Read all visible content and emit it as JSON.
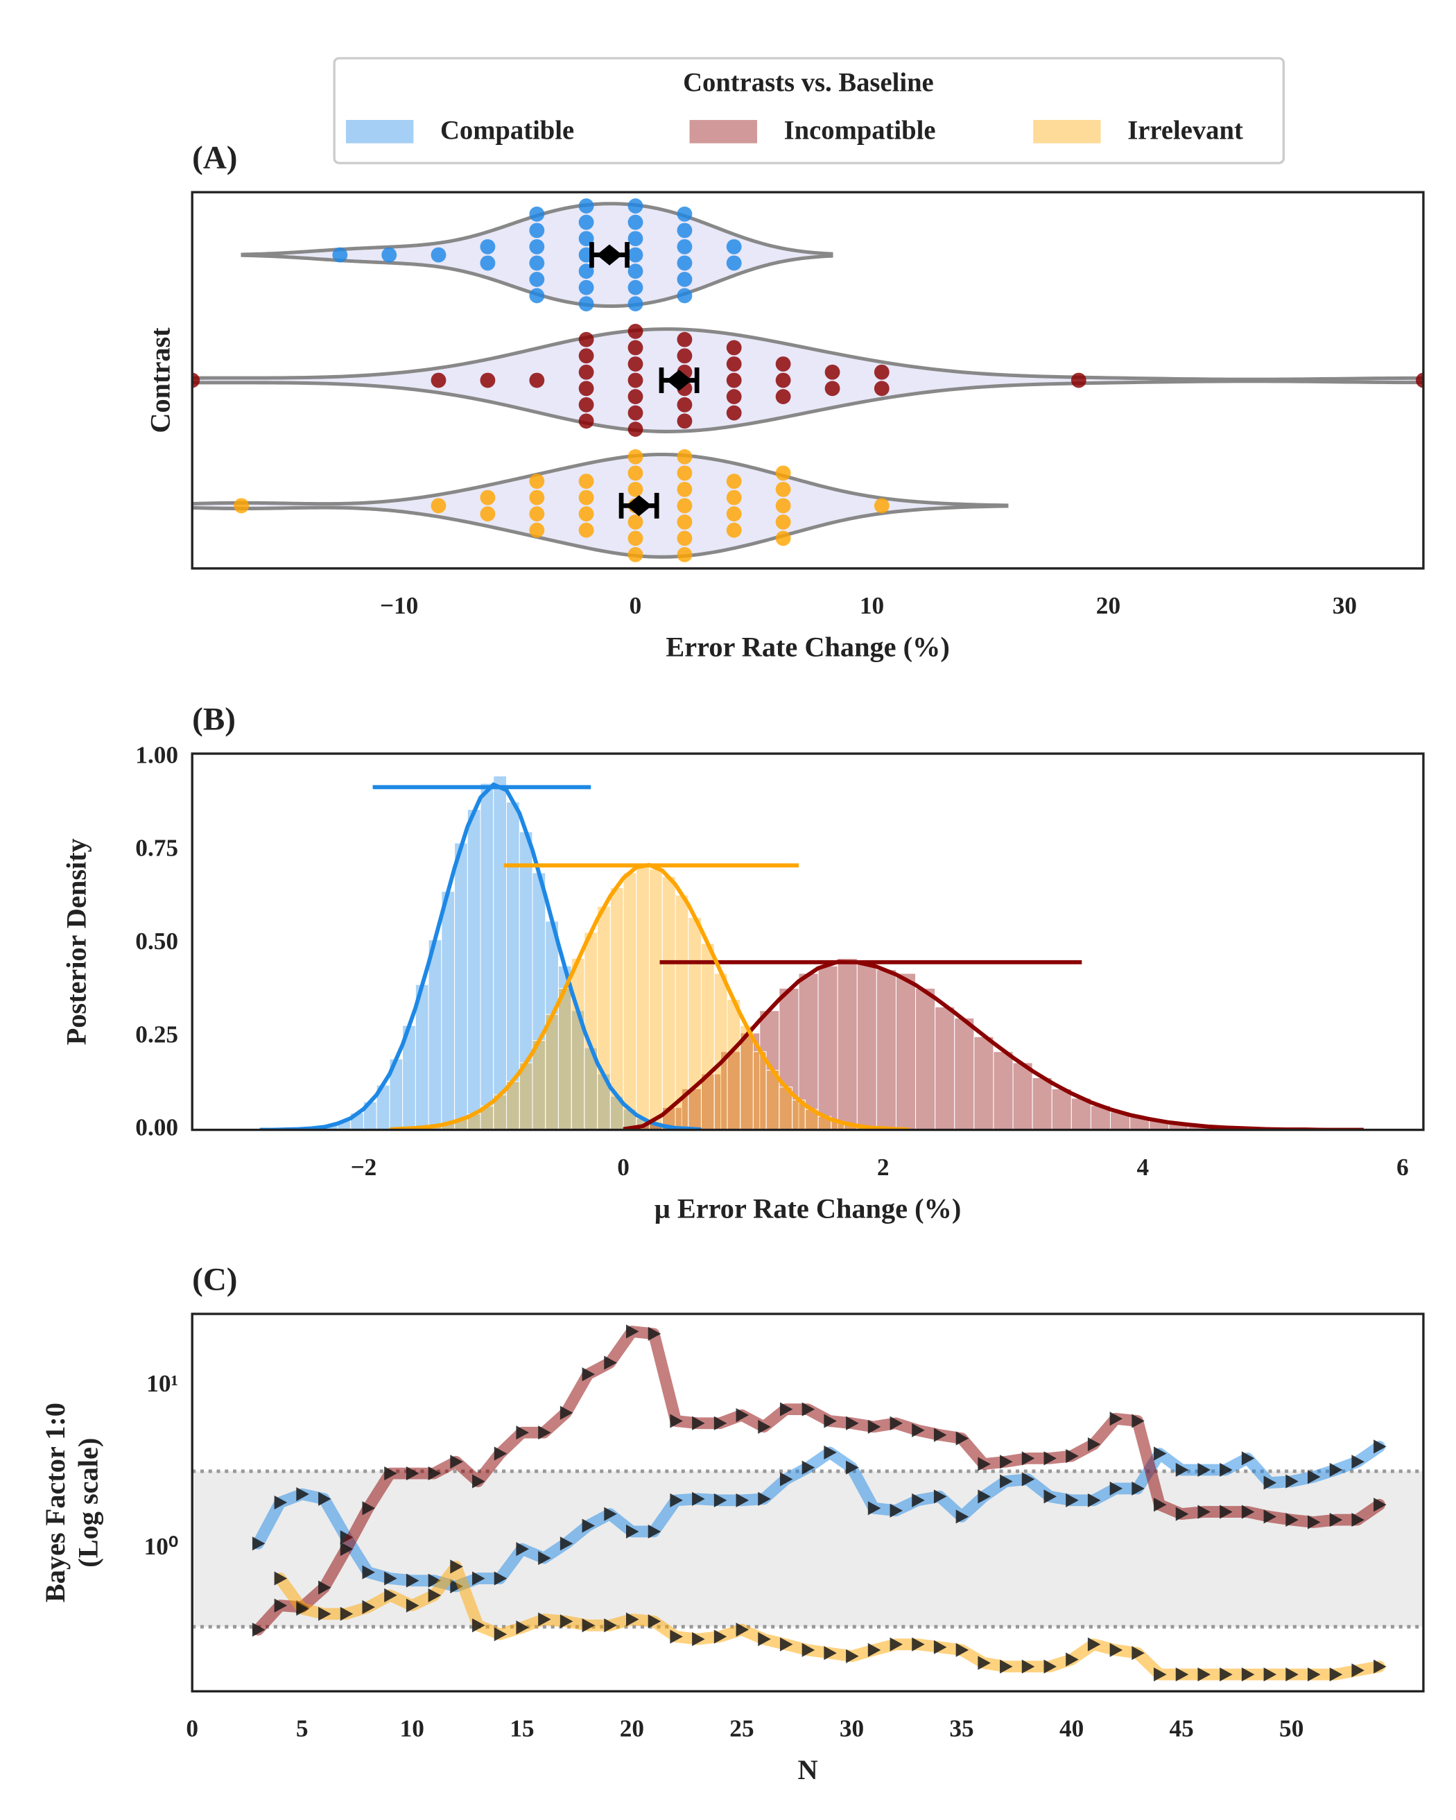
{
  "chart_data": [
    {
      "type": "violin",
      "panel_label": "(A)",
      "legend_title": "Contrasts vs. Baseline",
      "xlabel": "Error Rate Change (%)",
      "ylabel": "Contrast",
      "xlim": [
        -18.75,
        33.33
      ],
      "xticks": [
        {
          "value": -10,
          "label": "−10"
        },
        0,
        10,
        20,
        30
      ],
      "series": [
        {
          "name": "Compatible",
          "color": "#1e88e5",
          "mean": -1.1,
          "sem": 0.75,
          "values": [
            -12.5,
            -10.42,
            -8.33,
            -6.25,
            -6.25,
            -4.17,
            -4.17,
            -4.17,
            -4.17,
            -4.17,
            -4.17,
            -2.08,
            -2.08,
            -2.08,
            -2.08,
            -2.08,
            -2.08,
            -2.08,
            0,
            0,
            0,
            0,
            0,
            0,
            0,
            2.08,
            2.08,
            2.08,
            2.08,
            2.08,
            2.08,
            4.17,
            4.17
          ]
        },
        {
          "name": "Incompatible",
          "color": "#8b0000",
          "mean": 1.85,
          "sem": 0.75,
          "values": [
            -18.75,
            -8.33,
            -6.25,
            -4.17,
            -2.08,
            -2.08,
            -2.08,
            -2.08,
            -2.08,
            -2.08,
            0,
            0,
            0,
            0,
            0,
            0,
            0,
            2.08,
            2.08,
            2.08,
            2.08,
            2.08,
            2.08,
            4.17,
            4.17,
            4.17,
            4.17,
            4.17,
            6.25,
            6.25,
            6.25,
            8.33,
            8.33,
            10.42,
            10.42,
            18.75,
            33.33
          ]
        },
        {
          "name": "Irrelevant",
          "color": "#ffa500",
          "mean": 0.15,
          "sem": 0.75,
          "values": [
            -16.67,
            -8.33,
            -6.25,
            -6.25,
            -4.17,
            -4.17,
            -4.17,
            -4.17,
            -2.08,
            -2.08,
            -2.08,
            -2.08,
            0,
            0,
            0,
            0,
            0,
            0,
            0,
            2.08,
            2.08,
            2.08,
            2.08,
            2.08,
            2.08,
            2.08,
            4.17,
            4.17,
            4.17,
            4.17,
            6.25,
            6.25,
            6.25,
            6.25,
            6.25,
            10.42
          ]
        }
      ]
    },
    {
      "type": "hist",
      "panel_label": "(B)",
      "xlabel": "μ Error Rate Change (%)",
      "ylabel": "Posterior Density",
      "xlim": [
        -3.32,
        6.16
      ],
      "ylim": [
        0,
        1.01
      ],
      "xticks": [
        {
          "value": -2,
          "label": "−2"
        },
        0,
        2,
        4,
        6
      ],
      "yticks": [
        {
          "value": 0,
          "label": "0.00"
        },
        {
          "value": 0.25,
          "label": "0.25"
        },
        {
          "value": 0.5,
          "label": "0.50"
        },
        {
          "value": 0.75,
          "label": "0.75"
        },
        {
          "value": 1,
          "label": "1.00"
        }
      ],
      "series": [
        {
          "color": "#1e88e5",
          "hdi": [
            -1.93,
            -0.25
          ],
          "hdi_level": 0.92,
          "bins": [
            -2.8,
            -2.7,
            -2.6,
            -2.5,
            -2.4,
            -2.3,
            -2.2,
            -2.1,
            -2.0,
            -1.9,
            -1.8,
            -1.7,
            -1.6,
            -1.5,
            -1.4,
            -1.3,
            -1.2,
            -1.1,
            -1.0,
            -0.9,
            -0.8,
            -0.7,
            -0.6,
            -0.5,
            -0.4,
            -0.3,
            -0.2,
            -0.1,
            0.0,
            0.1,
            0.2,
            0.3,
            0.4,
            0.5,
            0.6
          ],
          "values": [
            0.0,
            0.001,
            0.001,
            0.003,
            0.006,
            0.012,
            0.024,
            0.045,
            0.075,
            0.12,
            0.19,
            0.28,
            0.39,
            0.51,
            0.64,
            0.77,
            0.86,
            0.93,
            0.95,
            0.88,
            0.8,
            0.69,
            0.56,
            0.44,
            0.32,
            0.22,
            0.15,
            0.09,
            0.055,
            0.03,
            0.016,
            0.008,
            0.004,
            0.002
          ],
          "kde": [
            0.0,
            0.0,
            0.001,
            0.002,
            0.004,
            0.008,
            0.017,
            0.031,
            0.056,
            0.094,
            0.15,
            0.229,
            0.328,
            0.447,
            0.576,
            0.703,
            0.814,
            0.892,
            0.927,
            0.912,
            0.85,
            0.751,
            0.628,
            0.498,
            0.374,
            0.266,
            0.179,
            0.114,
            0.07,
            0.04,
            0.021,
            0.011,
            0.005,
            0.003,
            0.001
          ]
        },
        {
          "color": "#8b0000",
          "hdi": [
            0.28,
            3.53
          ],
          "hdi_level": 0.45,
          "bins": [
            0,
            0.15,
            0.3,
            0.45,
            0.6,
            0.75,
            0.9,
            1.05,
            1.2,
            1.35,
            1.5,
            1.65,
            1.8,
            1.95,
            2.1,
            2.25,
            2.4,
            2.55,
            2.7,
            2.85,
            3.0,
            3.15,
            3.3,
            3.45,
            3.6,
            3.75,
            3.9,
            4.05,
            4.2,
            4.35,
            4.5,
            4.65,
            4.8,
            4.95,
            5.1,
            5.25,
            5.4,
            5.55,
            5.7
          ],
          "values": [
            0.004,
            0.02,
            0.06,
            0.11,
            0.15,
            0.21,
            0.26,
            0.32,
            0.38,
            0.42,
            0.44,
            0.46,
            0.45,
            0.43,
            0.42,
            0.38,
            0.33,
            0.3,
            0.25,
            0.21,
            0.18,
            0.14,
            0.11,
            0.085,
            0.065,
            0.048,
            0.035,
            0.024,
            0.017,
            0.011,
            0.008,
            0.005,
            0.003,
            0.002,
            0.001,
            0.001,
            0.0,
            0.0
          ],
          "kde": [
            0.002,
            0.01,
            0.04,
            0.085,
            0.131,
            0.18,
            0.235,
            0.294,
            0.35,
            0.399,
            0.434,
            0.451,
            0.45,
            0.438,
            0.417,
            0.389,
            0.354,
            0.315,
            0.274,
            0.233,
            0.194,
            0.158,
            0.126,
            0.098,
            0.074,
            0.055,
            0.04,
            0.029,
            0.02,
            0.014,
            0.009,
            0.006,
            0.004,
            0.002,
            0.001,
            0.001,
            0.0,
            0.0,
            0.0
          ]
        },
        {
          "color": "#ffa500",
          "hdi": [
            -0.92,
            1.35
          ],
          "hdi_level": 0.71,
          "bins": [
            -1.8,
            -1.7,
            -1.6,
            -1.5,
            -1.4,
            -1.3,
            -1.2,
            -1.1,
            -1.0,
            -0.9,
            -0.8,
            -0.7,
            -0.6,
            -0.5,
            -0.4,
            -0.3,
            -0.2,
            -0.1,
            0.0,
            0.1,
            0.2,
            0.3,
            0.4,
            0.5,
            0.6,
            0.7,
            0.8,
            0.9,
            1.0,
            1.1,
            1.2,
            1.3,
            1.4,
            1.5,
            1.6,
            1.7,
            1.8,
            1.9,
            2.0,
            2.1,
            2.2
          ],
          "values": [
            0.002,
            0.004,
            0.007,
            0.011,
            0.018,
            0.028,
            0.043,
            0.064,
            0.094,
            0.13,
            0.18,
            0.24,
            0.31,
            0.38,
            0.46,
            0.53,
            0.6,
            0.65,
            0.69,
            0.71,
            0.7,
            0.68,
            0.63,
            0.57,
            0.5,
            0.42,
            0.35,
            0.28,
            0.21,
            0.16,
            0.115,
            0.08,
            0.055,
            0.036,
            0.023,
            0.014,
            0.008,
            0.005,
            0.003,
            0.001
          ],
          "kde": [
            0.001,
            0.003,
            0.005,
            0.008,
            0.013,
            0.022,
            0.034,
            0.052,
            0.077,
            0.111,
            0.154,
            0.207,
            0.27,
            0.341,
            0.416,
            0.493,
            0.566,
            0.628,
            0.676,
            0.705,
            0.711,
            0.696,
            0.659,
            0.605,
            0.537,
            0.463,
            0.386,
            0.311,
            0.244,
            0.185,
            0.135,
            0.096,
            0.066,
            0.044,
            0.028,
            0.018,
            0.011,
            0.006,
            0.004,
            0.002,
            0.001
          ]
        }
      ]
    },
    {
      "type": "line",
      "panel_label": "(C)",
      "xlabel": "N",
      "ylabel": [
        "Bayes Factor 1:0",
        "(Log scale)"
      ],
      "log_y": true,
      "xlim": [
        0,
        56
      ],
      "ylim": [
        0.134,
        27.7
      ],
      "xticks": [
        0,
        5,
        10,
        15,
        20,
        25,
        30,
        35,
        40,
        45,
        50
      ],
      "yticks": [
        {
          "value": 1,
          "label": "10⁰"
        },
        {
          "value": 10,
          "label": "10¹"
        }
      ],
      "thresholds": [
        0.3333,
        3
      ],
      "x": [
        3,
        4,
        5,
        6,
        7,
        8,
        9,
        10,
        11,
        12,
        13,
        14,
        15,
        16,
        17,
        18,
        19,
        20,
        21,
        22,
        23,
        24,
        25,
        26,
        27,
        28,
        29,
        30,
        31,
        32,
        33,
        34,
        35,
        36,
        37,
        38,
        39,
        40,
        41,
        42,
        43,
        44,
        45,
        46,
        47,
        48,
        49,
        50,
        51,
        52,
        53,
        54
      ],
      "series": [
        {
          "color": "#1e88e5",
          "values": [
            1.08,
            1.93,
            2.17,
            2.03,
            1.18,
            0.72,
            0.66,
            0.64,
            0.64,
            0.59,
            0.66,
            0.66,
            1.0,
            0.88,
            1.08,
            1.39,
            1.64,
            1.28,
            1.28,
            1.99,
            2.03,
            1.99,
            1.99,
            2.03,
            2.68,
            3.16,
            3.91,
            3.16,
            1.78,
            1.72,
            1.99,
            2.1,
            1.58,
            2.1,
            2.6,
            2.68,
            2.1,
            1.99,
            1.99,
            2.35,
            2.35,
            3.85,
            3.06,
            3.06,
            3.06,
            3.6,
            2.55,
            2.6,
            2.77,
            3.06,
            3.43,
            4.25
          ]
        },
        {
          "color": "#8b0000",
          "values": [
            0.32,
            0.45,
            0.44,
            0.58,
            1.0,
            1.78,
            2.91,
            2.91,
            2.91,
            3.43,
            2.6,
            3.85,
            5.18,
            5.18,
            6.85,
            11.8,
            13.9,
            21.6,
            20.9,
            6.1,
            5.91,
            5.91,
            6.63,
            5.62,
            7.2,
            7.2,
            6.1,
            5.91,
            5.62,
            5.91,
            5.35,
            5.01,
            4.77,
            3.32,
            3.43,
            3.6,
            3.6,
            3.72,
            4.39,
            6.3,
            6.1,
            1.87,
            1.64,
            1.69,
            1.69,
            1.69,
            1.58,
            1.51,
            1.46,
            1.51,
            1.51,
            1.87
          ]
        },
        {
          "color": "#ffa500",
          "values": [
            null,
            0.66,
            0.43,
            0.4,
            0.4,
            0.44,
            0.52,
            0.45,
            0.52,
            0.78,
            0.34,
            0.3,
            0.33,
            0.37,
            0.36,
            0.34,
            0.34,
            0.37,
            0.36,
            0.29,
            0.28,
            0.29,
            0.32,
            0.28,
            0.26,
            0.24,
            0.23,
            0.22,
            0.24,
            0.26,
            0.26,
            0.25,
            0.24,
            0.2,
            0.19,
            0.19,
            0.19,
            0.21,
            0.26,
            0.24,
            0.23,
            0.17,
            0.17,
            0.17,
            0.17,
            0.17,
            0.17,
            0.17,
            0.17,
            0.17,
            0.18,
            0.19
          ]
        }
      ]
    }
  ]
}
